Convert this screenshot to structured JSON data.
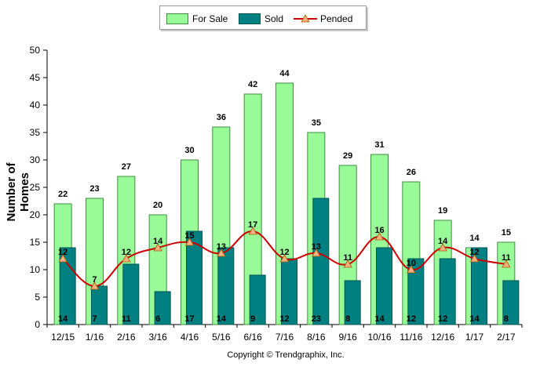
{
  "legend": {
    "for_sale": "For Sale",
    "sold": "Sold",
    "pended": "Pended"
  },
  "copyright": "Copyright © Trendgraphix, Inc.",
  "colors": {
    "for_sale_fill": "#98fb98",
    "for_sale_stroke": "#3f8f3f",
    "sold_fill": "#008080",
    "sold_stroke": "#005555",
    "pended_line": "#cc0000",
    "pended_marker": "#f4b183"
  },
  "chart_data": {
    "type": "bar",
    "title": "",
    "xlabel": "",
    "ylabel": "Number of Homes",
    "ylim": [
      0,
      50
    ],
    "yticks": [
      0,
      5,
      10,
      15,
      20,
      25,
      30,
      35,
      40,
      45,
      50
    ],
    "grid": false,
    "legend_position": "top-center",
    "categories": [
      "12/15",
      "1/16",
      "2/16",
      "3/16",
      "4/16",
      "5/16",
      "6/16",
      "7/16",
      "8/16",
      "9/16",
      "10/16",
      "11/16",
      "12/16",
      "1/17",
      "2/17"
    ],
    "series": [
      {
        "name": "For Sale",
        "kind": "bar",
        "values": [
          22,
          23,
          27,
          20,
          30,
          36,
          42,
          44,
          35,
          29,
          31,
          26,
          19,
          14,
          15
        ]
      },
      {
        "name": "Sold",
        "kind": "bar",
        "values": [
          14,
          7,
          11,
          6,
          17,
          14,
          9,
          12,
          23,
          8,
          14,
          12,
          12,
          14,
          8
        ]
      },
      {
        "name": "Pended",
        "kind": "line",
        "values": [
          12,
          7,
          12,
          14,
          15,
          13,
          17,
          12,
          13,
          11,
          16,
          10,
          14,
          12,
          11
        ]
      }
    ]
  }
}
